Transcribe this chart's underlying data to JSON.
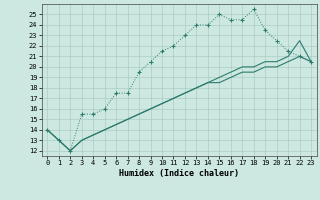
{
  "title": "",
  "xlabel": "Humidex (Indice chaleur)",
  "xlim": [
    -0.5,
    23.5
  ],
  "ylim": [
    11.5,
    26.0
  ],
  "yticks": [
    12,
    13,
    14,
    15,
    16,
    17,
    18,
    19,
    20,
    21,
    22,
    23,
    24,
    25
  ],
  "xticks": [
    0,
    1,
    2,
    3,
    4,
    5,
    6,
    7,
    8,
    9,
    10,
    11,
    12,
    13,
    14,
    15,
    16,
    17,
    18,
    19,
    20,
    21,
    22,
    23
  ],
  "background_color": "#cce8e0",
  "grid_color": "#aaccC4",
  "line_color": "#2e7b6e",
  "line1_x": [
    0,
    1,
    2,
    3,
    4,
    5,
    6,
    7,
    8,
    9,
    10,
    11,
    12,
    13,
    14,
    15,
    16,
    17,
    18,
    19,
    20,
    21,
    22,
    23
  ],
  "line1_y": [
    14,
    13,
    12,
    15.5,
    15.5,
    16,
    17.5,
    17.5,
    19.5,
    20.5,
    21.5,
    22,
    23,
    24,
    24,
    25,
    24.5,
    24.5,
    25.5,
    23.5,
    22.5,
    21.5,
    21.0,
    20.5
  ],
  "line2_x": [
    0,
    2,
    3,
    4,
    5,
    6,
    7,
    8,
    9,
    10,
    11,
    12,
    13,
    14,
    15,
    16,
    17,
    18,
    19,
    20,
    21,
    22,
    23
  ],
  "line2_y": [
    14,
    12,
    13.0,
    13.5,
    14.0,
    14.5,
    15.0,
    15.5,
    16.0,
    16.5,
    17.0,
    17.5,
    18.0,
    18.5,
    18.5,
    19.0,
    19.5,
    19.5,
    20.0,
    20.0,
    20.5,
    21.0,
    20.5
  ],
  "line3_x": [
    0,
    2,
    3,
    4,
    5,
    6,
    7,
    8,
    9,
    10,
    11,
    12,
    13,
    14,
    15,
    16,
    17,
    18,
    19,
    20,
    21,
    22,
    23
  ],
  "line3_y": [
    14,
    12,
    13.0,
    13.5,
    14.0,
    14.5,
    15.0,
    15.5,
    16.0,
    16.5,
    17.0,
    17.5,
    18.0,
    18.5,
    19.0,
    19.5,
    20.0,
    20.0,
    20.5,
    20.5,
    21.0,
    22.5,
    20.5
  ]
}
